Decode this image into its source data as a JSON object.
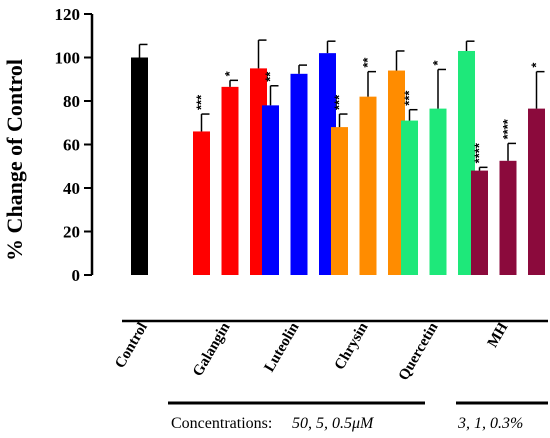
{
  "chart_data": {
    "type": "bar",
    "ylabel": "% Change of Control",
    "ylim": [
      0,
      120
    ],
    "yticks": [
      0,
      20,
      40,
      60,
      80,
      100,
      120
    ],
    "grid": false,
    "groups": [
      {
        "name": "Control",
        "color": "#000000",
        "bars": [
          {
            "value": 100,
            "err": 6,
            "sig": ""
          }
        ]
      },
      {
        "name": "Galangin",
        "color": "#ff0000",
        "bars": [
          {
            "value": 66,
            "err": 8,
            "sig": "***"
          },
          {
            "value": 86.5,
            "err": 3,
            "sig": "*"
          },
          {
            "value": 95,
            "err": 13,
            "sig": ""
          }
        ]
      },
      {
        "name": "Luteolin",
        "color": "#0000ff",
        "bars": [
          {
            "value": 78,
            "err": 9,
            "sig": "**"
          },
          {
            "value": 92.5,
            "err": 4,
            "sig": ""
          },
          {
            "value": 102,
            "err": 5.5,
            "sig": ""
          }
        ]
      },
      {
        "name": "Chrysin",
        "color": "#ff8c00",
        "bars": [
          {
            "value": 68,
            "err": 6,
            "sig": "***"
          },
          {
            "value": 82,
            "err": 11.5,
            "sig": "**"
          },
          {
            "value": 94,
            "err": 9,
            "sig": ""
          }
        ]
      },
      {
        "name": "Quercetin",
        "color": "#1ee87a",
        "bars": [
          {
            "value": 71,
            "err": 5,
            "sig": "***"
          },
          {
            "value": 76.5,
            "err": 18,
            "sig": "*"
          },
          {
            "value": 103,
            "err": 4.5,
            "sig": ""
          }
        ]
      },
      {
        "name": "MH",
        "color": "#8b0a3c",
        "bars": [
          {
            "value": 48,
            "err": 1.5,
            "sig": "****"
          },
          {
            "value": 52.5,
            "err": 8,
            "sig": "****"
          },
          {
            "value": 76.5,
            "err": 17,
            "sig": "*"
          }
        ]
      }
    ]
  },
  "concentrations": {
    "label": "Concentrations:",
    "flavonoid_values": "50, 5, 0.5μM",
    "mh_values": "3, 1, 0.3%"
  }
}
